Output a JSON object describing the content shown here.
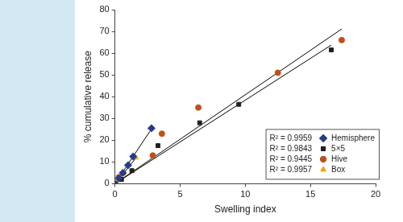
{
  "chart_data": {
    "type": "scatter",
    "x_label": "Swelling index",
    "y_label": "% cumulative release",
    "xlim": [
      0,
      20
    ],
    "xticks": [
      0,
      5,
      10,
      15,
      20
    ],
    "ylim": [
      0,
      80
    ],
    "yticks": [
      0,
      10,
      20,
      30,
      40,
      50,
      60,
      70,
      80
    ],
    "grid": false,
    "legend": "lower right",
    "series": [
      {
        "name": "Hemisphere",
        "color": "#253c8a",
        "marker": "diamond",
        "line_style": "solid",
        "annotation": "R² = 0.9959",
        "x": [
          0,
          0.3,
          0.6,
          1.0,
          1.4,
          2.8
        ],
        "values": [
          0,
          2.5,
          5,
          8.5,
          12.5,
          25.5
        ]
      },
      {
        "name": "5×5",
        "color": "#231f20",
        "marker": "square",
        "line_style": "solid",
        "annotation": "R² = 0.9843",
        "x": [
          0,
          0.5,
          1.3,
          3.3,
          6.5,
          9.5,
          16.6
        ],
        "values": [
          0,
          2,
          6,
          17.5,
          28,
          36.5,
          61.5
        ]
      },
      {
        "name": "Hive",
        "color": "#c0501a",
        "marker": "circle",
        "line_style": "solid",
        "annotation": "R² = 0.9445",
        "x": [
          0,
          0.3,
          2.9,
          3.6,
          6.4,
          12.5,
          17.4
        ],
        "values": [
          0,
          3,
          13,
          23,
          35,
          51,
          66
        ]
      },
      {
        "name": "Box",
        "color": "#f0a800",
        "marker": "triangle",
        "line_style": "solid",
        "annotation": "R² = 0.9957",
        "x": [
          0,
          0.2,
          0.7,
          1.6
        ],
        "values": [
          0,
          1.5,
          4.5,
          12
        ]
      }
    ]
  }
}
